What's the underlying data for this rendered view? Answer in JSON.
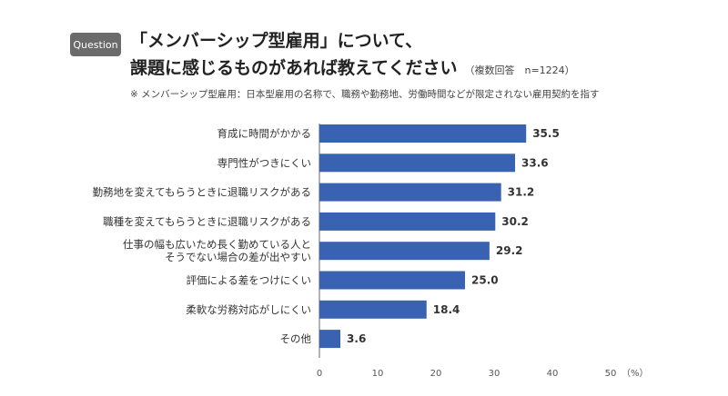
{
  "header": {
    "badge": "Question",
    "title_line1": "「メンバーシップ型雇用」について、",
    "title_line2": "課題に感じるものがあれば教えてください",
    "subtitle": "（複数回答　n=1224）",
    "note": "※ メンバーシップ型雇用：日本型雇用の名称で、職務や勤務地、労働時間などが限定されない雇用契約を指す"
  },
  "chart_data": {
    "type": "bar",
    "orientation": "horizontal",
    "categories": [
      [
        "育成に時間がかかる"
      ],
      [
        "専門性がつきにくい"
      ],
      [
        "勤務地を変えてもらうときに退職リスクがある"
      ],
      [
        "職種を変えてもらうときに退職リスクがある"
      ],
      [
        "仕事の幅も広いため長く勤めている人と",
        "そうでない場合の差が出やすい"
      ],
      [
        "評価による差をつけにくい"
      ],
      [
        "柔軟な労務対応がしにくい"
      ],
      [
        "その他"
      ]
    ],
    "values": [
      35.5,
      33.6,
      31.2,
      30.2,
      29.2,
      25.0,
      18.4,
      3.6
    ],
    "value_labels": [
      "35.5",
      "33.6",
      "31.2",
      "30.2",
      "29.2",
      "25.0",
      "18.4",
      "3.6"
    ],
    "xlim": [
      0,
      50
    ],
    "xticks": [
      "0",
      "10",
      "20",
      "30",
      "40",
      "50"
    ],
    "unit": "（%）",
    "bar_color": "#3a62b2",
    "grid": false
  }
}
